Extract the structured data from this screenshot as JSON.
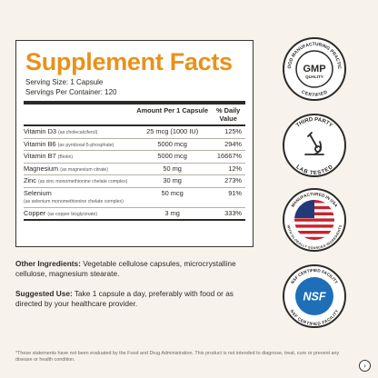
{
  "facts": {
    "title": "Supplement Facts",
    "serving_size": "Serving Size: 1 Capsule",
    "servings_per_container": "Servings Per Container: 120",
    "col_amount": "Amount Per 1 Capsule",
    "col_dv": "% Daily Value",
    "rows": [
      {
        "name": "Vitamin D3",
        "sub": "(as cholecalciferol)",
        "amount": "25 mcg (1000 IU)",
        "dv": "125%"
      },
      {
        "name": "Vitamin B6",
        "sub": "(as pyridoxal-5-phosphate)",
        "amount": "5000 mcg",
        "dv": "294%"
      },
      {
        "name": "Vitamin B7",
        "sub": "(Biotin)",
        "amount": "5000 mcg",
        "dv": "16667%"
      },
      {
        "name": "Magnesium",
        "sub": "(as magnesium citrate)",
        "amount": "50 mg",
        "dv": "12%"
      },
      {
        "name": "Zinc",
        "sub": "(as zinc monomethionine chelate complex)",
        "amount": "30 mg",
        "dv": "273%"
      },
      {
        "name": "Selenium",
        "sub": "(as selenium monomethionine chelate complex)",
        "amount": "50 mcg",
        "dv": "91%"
      },
      {
        "name": "Copper",
        "sub": "(as copper bisglycinate)",
        "amount": "3 mg",
        "dv": "333%"
      }
    ]
  },
  "other_ingredients": {
    "label": "Other Ingredients:",
    "text": "Vegetable cellulose capsules, microcrystalline cellulose, magnesium stearate."
  },
  "suggested_use": {
    "label": "Suggested Use:",
    "text": "Take 1 capsule a day, preferably with food or as directed by your healthcare provider."
  },
  "footnote": "*These statements have not been evaluated by the Food and Drug Administration. This product is not intended to diagnose, treat, cure or prevent any disease or health condition.",
  "badges": {
    "gmp": {
      "center": "GMP",
      "sub": "QUALITY",
      "ring_top": "GOOD MANUFACTURING PRACTICE",
      "ring_bottom": "CERTIFIED"
    },
    "lab": {
      "ring_top": "THIRD PARTY",
      "ring_bottom": "LAB TESTED"
    },
    "usa": {
      "ring_top": "MANUFACTURED IN USA",
      "ring_bottom": "WITH GLOBALLY SOURCED INGREDIENTS"
    },
    "nsf": {
      "center": "NSF",
      "ring_top": "NSF CERTIFIED FACILITY",
      "ring_bottom": "NSF CERTIFIED FACILITY"
    }
  },
  "colors": {
    "accent": "#e8921a",
    "nsf_blue": "#1e6fb8",
    "flag_red": "#c8232c",
    "flag_blue": "#23397a"
  },
  "nav": {
    "next_glyph": "›"
  }
}
